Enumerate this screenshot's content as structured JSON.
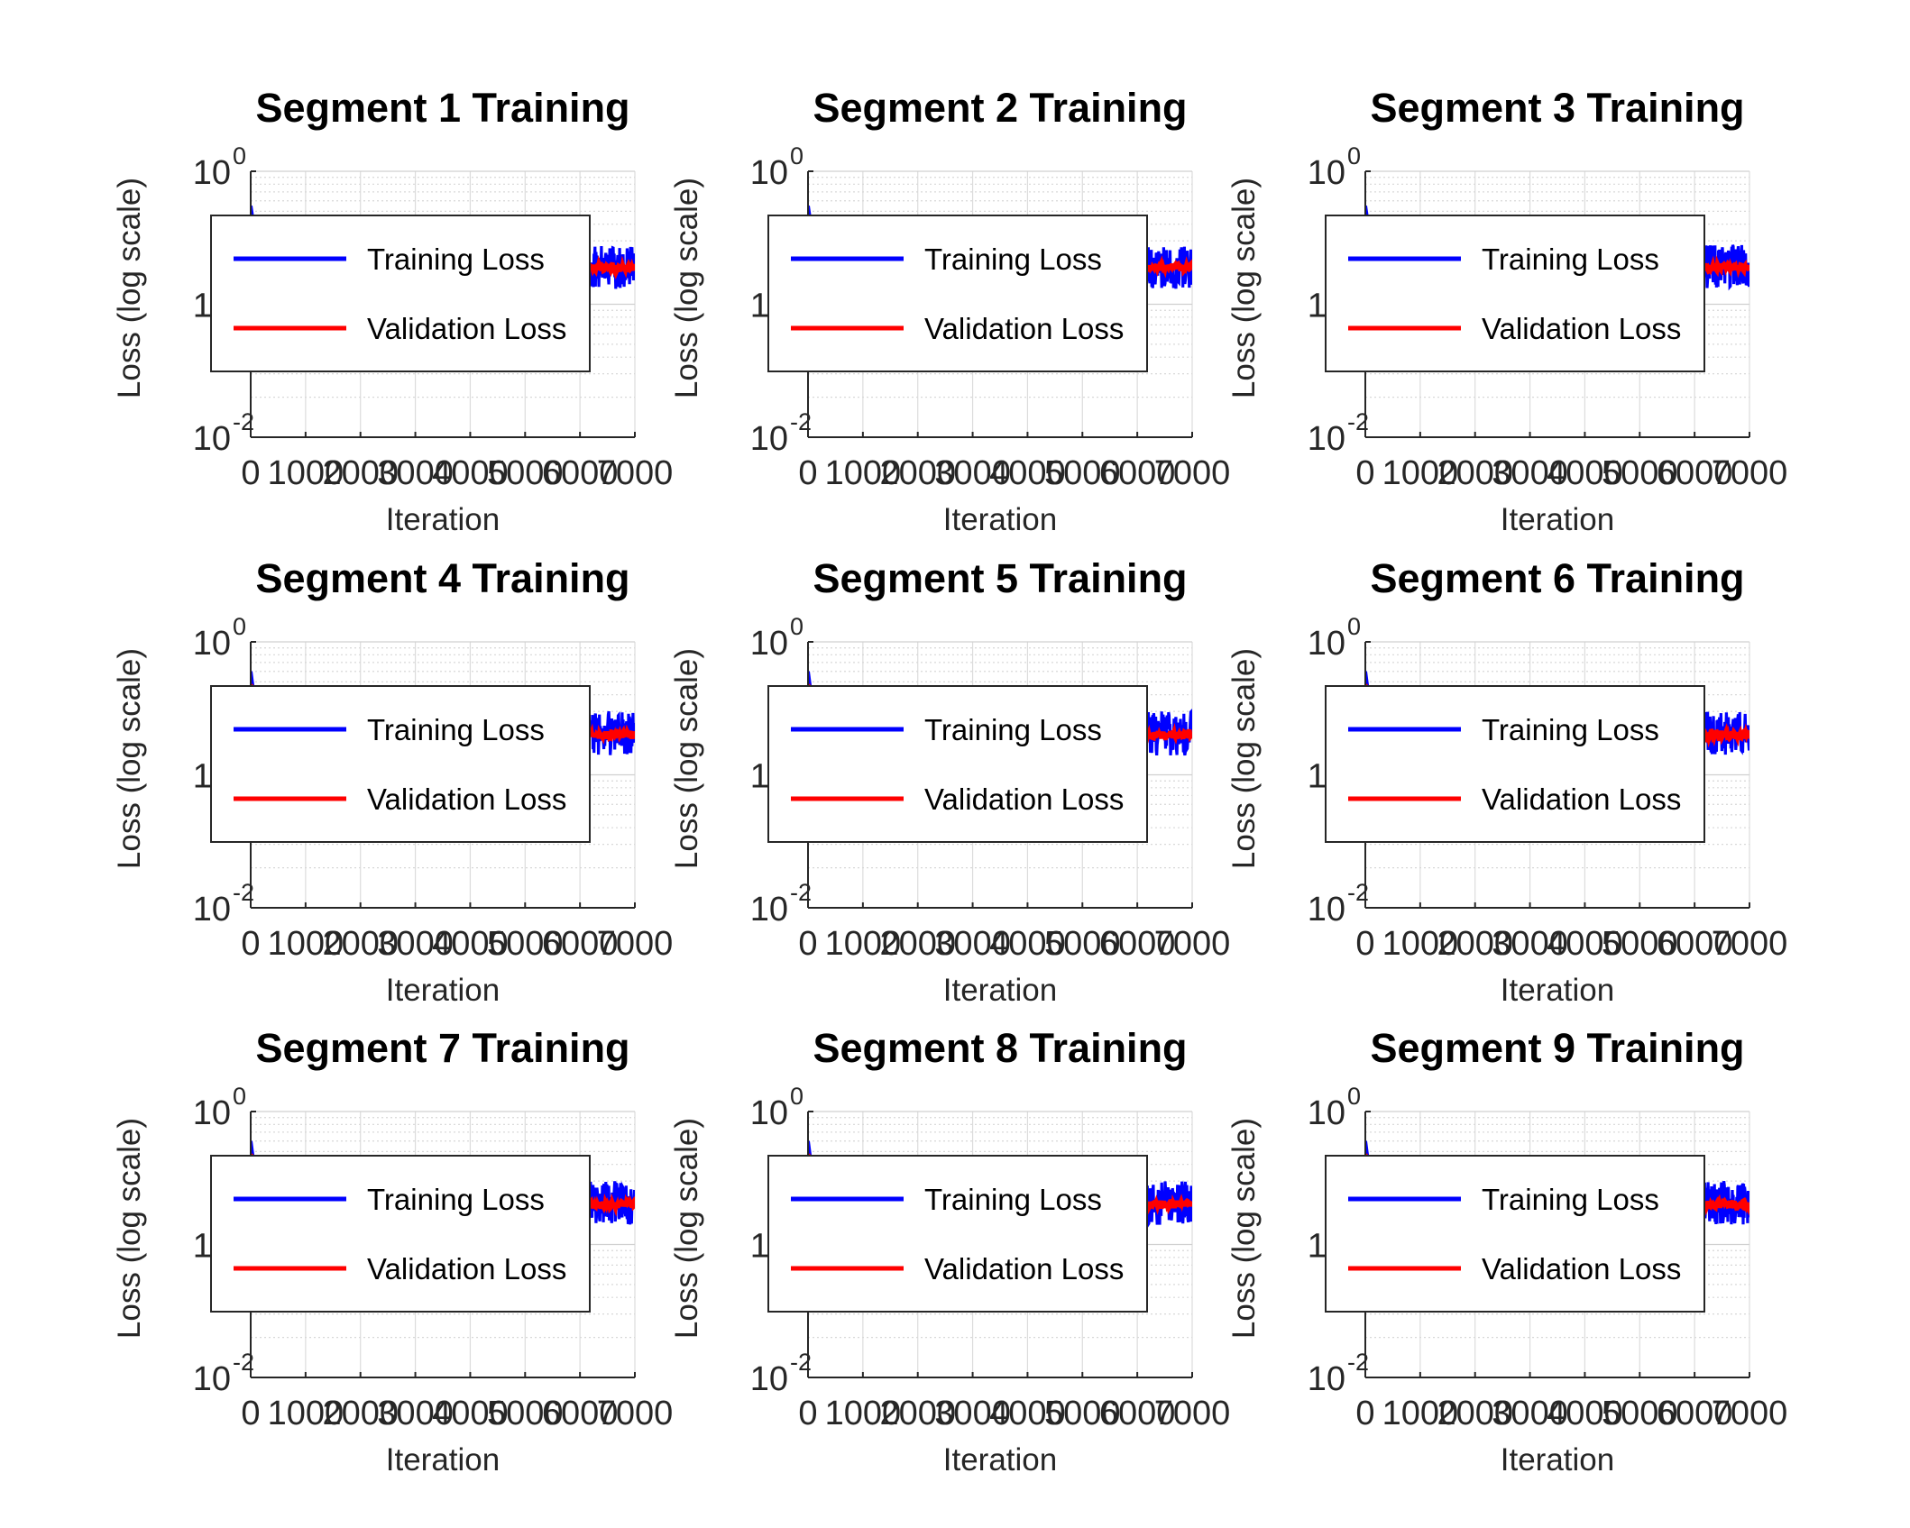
{
  "chart_data": [
    {
      "type": "line",
      "title": "Segment 1 Training",
      "xlabel": "Iteration",
      "ylabel": "Loss (log scale)",
      "xlim": [
        0,
        7000
      ],
      "ylim": [
        0.01,
        1
      ],
      "yscale": "log",
      "grid": true,
      "legend_position": "north",
      "x_ticks": [
        "0",
        "1000",
        "2000",
        "3000",
        "4000",
        "5000",
        "6000",
        "7000"
      ],
      "y_ticks": [
        {
          "base": "10",
          "exp": "-2"
        },
        {
          "base": "10",
          "exp": "-1"
        },
        {
          "base": "10",
          "exp": "0"
        }
      ],
      "series": [
        {
          "name": "Training Loss",
          "color": "#0000ff",
          "x": [
            0,
            50,
            150,
            300,
            1000,
            2000,
            3000,
            4000,
            5000,
            6000,
            6500,
            6800,
            7000
          ],
          "y": [
            0.55,
            0.4,
            0.24,
            0.2,
            0.19,
            0.19,
            0.19,
            0.19,
            0.19,
            0.19,
            0.19,
            0.19,
            0.19
          ],
          "band": [
            0.13,
            0.28
          ]
        },
        {
          "name": "Validation Loss",
          "color": "#ff0000",
          "x": [
            0,
            50,
            150,
            300,
            1000,
            2000,
            3000,
            4000,
            5000,
            6000,
            6500,
            6800,
            7000
          ],
          "y": [
            0.45,
            0.32,
            0.22,
            0.2,
            0.19,
            0.19,
            0.19,
            0.19,
            0.19,
            0.19,
            0.19,
            0.19,
            0.19
          ]
        }
      ]
    },
    {
      "type": "line",
      "title": "Segment 2 Training",
      "xlabel": "Iteration",
      "ylabel": "Loss (log scale)",
      "xlim": [
        0,
        7000
      ],
      "ylim": [
        0.01,
        1
      ],
      "yscale": "log",
      "grid": true,
      "legend_position": "north",
      "x_ticks": [
        "0",
        "1000",
        "2000",
        "3000",
        "4000",
        "5000",
        "6000",
        "7000"
      ],
      "y_ticks": [
        {
          "base": "10",
          "exp": "-2"
        },
        {
          "base": "10",
          "exp": "-1"
        },
        {
          "base": "10",
          "exp": "0"
        }
      ],
      "series": [
        {
          "name": "Training Loss",
          "color": "#0000ff",
          "x": [
            0,
            50,
            150,
            300,
            1000,
            2000,
            3000,
            4000,
            5000,
            6000,
            6500,
            6800,
            7000
          ],
          "y": [
            0.55,
            0.4,
            0.24,
            0.2,
            0.19,
            0.19,
            0.19,
            0.19,
            0.19,
            0.19,
            0.19,
            0.19,
            0.19
          ],
          "band": [
            0.13,
            0.28
          ]
        },
        {
          "name": "Validation Loss",
          "color": "#ff0000",
          "x": [
            0,
            50,
            150,
            300,
            1000,
            2000,
            3000,
            4000,
            5000,
            6000,
            6500,
            6800,
            7000
          ],
          "y": [
            0.45,
            0.32,
            0.22,
            0.2,
            0.19,
            0.19,
            0.19,
            0.19,
            0.19,
            0.19,
            0.19,
            0.19,
            0.19
          ]
        }
      ]
    },
    {
      "type": "line",
      "title": "Segment 3 Training",
      "xlabel": "Iteration",
      "ylabel": "Loss (log scale)",
      "xlim": [
        0,
        7000
      ],
      "ylim": [
        0.01,
        1
      ],
      "yscale": "log",
      "grid": true,
      "legend_position": "north",
      "x_ticks": [
        "0",
        "1000",
        "2000",
        "3000",
        "4000",
        "5000",
        "6000",
        "7000"
      ],
      "y_ticks": [
        {
          "base": "10",
          "exp": "-2"
        },
        {
          "base": "10",
          "exp": "-1"
        },
        {
          "base": "10",
          "exp": "0"
        }
      ],
      "series": [
        {
          "name": "Training Loss",
          "color": "#0000ff",
          "x": [
            0,
            50,
            150,
            300,
            1000,
            2000,
            3000,
            4000,
            5000,
            6000,
            6500,
            6800,
            7000
          ],
          "y": [
            0.55,
            0.4,
            0.24,
            0.2,
            0.19,
            0.19,
            0.19,
            0.19,
            0.19,
            0.19,
            0.19,
            0.19,
            0.19
          ],
          "band": [
            0.13,
            0.28
          ]
        },
        {
          "name": "Validation Loss",
          "color": "#ff0000",
          "x": [
            0,
            50,
            150,
            300,
            1000,
            2000,
            3000,
            4000,
            5000,
            6000,
            6500,
            6800,
            7000
          ],
          "y": [
            0.45,
            0.32,
            0.22,
            0.2,
            0.19,
            0.19,
            0.19,
            0.19,
            0.19,
            0.19,
            0.19,
            0.19,
            0.19
          ]
        }
      ]
    },
    {
      "type": "line",
      "title": "Segment 4 Training",
      "xlabel": "Iteration",
      "ylabel": "Loss (log scale)",
      "xlim": [
        0,
        7000
      ],
      "ylim": [
        0.01,
        1
      ],
      "yscale": "log",
      "grid": true,
      "legend_position": "north",
      "x_ticks": [
        "0",
        "1000",
        "2000",
        "3000",
        "4000",
        "5000",
        "6000",
        "7000"
      ],
      "y_ticks": [
        {
          "base": "10",
          "exp": "-2"
        },
        {
          "base": "10",
          "exp": "-1"
        },
        {
          "base": "10",
          "exp": "0"
        }
      ],
      "series": [
        {
          "name": "Training Loss",
          "color": "#0000ff",
          "x": [
            0,
            50,
            150,
            300,
            1000,
            2000,
            3000,
            4000,
            5000,
            6000,
            6500,
            6800,
            7000
          ],
          "y": [
            0.6,
            0.42,
            0.26,
            0.21,
            0.2,
            0.2,
            0.2,
            0.2,
            0.2,
            0.2,
            0.2,
            0.2,
            0.2
          ],
          "band": [
            0.14,
            0.3
          ]
        },
        {
          "name": "Validation Loss",
          "color": "#ff0000",
          "x": [
            0,
            50,
            150,
            300,
            1000,
            2000,
            3000,
            4000,
            5000,
            6000,
            6500,
            6800,
            7000
          ],
          "y": [
            0.48,
            0.34,
            0.23,
            0.21,
            0.2,
            0.2,
            0.2,
            0.2,
            0.2,
            0.2,
            0.2,
            0.2,
            0.2
          ]
        }
      ]
    },
    {
      "type": "line",
      "title": "Segment 5 Training",
      "xlabel": "Iteration",
      "ylabel": "Loss (log scale)",
      "xlim": [
        0,
        7000
      ],
      "ylim": [
        0.01,
        1
      ],
      "yscale": "log",
      "grid": true,
      "legend_position": "north",
      "x_ticks": [
        "0",
        "1000",
        "2000",
        "3000",
        "4000",
        "5000",
        "6000",
        "7000"
      ],
      "y_ticks": [
        {
          "base": "10",
          "exp": "-2"
        },
        {
          "base": "10",
          "exp": "-1"
        },
        {
          "base": "10",
          "exp": "0"
        }
      ],
      "series": [
        {
          "name": "Training Loss",
          "color": "#0000ff",
          "x": [
            0,
            50,
            150,
            300,
            1000,
            2000,
            3000,
            4000,
            5000,
            6000,
            6500,
            6800,
            7000
          ],
          "y": [
            0.6,
            0.42,
            0.26,
            0.21,
            0.2,
            0.2,
            0.2,
            0.2,
            0.2,
            0.2,
            0.2,
            0.2,
            0.2
          ],
          "band": [
            0.14,
            0.3
          ]
        },
        {
          "name": "Validation Loss",
          "color": "#ff0000",
          "x": [
            0,
            50,
            150,
            300,
            1000,
            2000,
            3000,
            4000,
            5000,
            6000,
            6500,
            6800,
            7000
          ],
          "y": [
            0.48,
            0.34,
            0.23,
            0.21,
            0.2,
            0.2,
            0.2,
            0.2,
            0.2,
            0.2,
            0.2,
            0.2,
            0.2
          ]
        }
      ]
    },
    {
      "type": "line",
      "title": "Segment 6 Training",
      "xlabel": "Iteration",
      "ylabel": "Loss (log scale)",
      "xlim": [
        0,
        7000
      ],
      "ylim": [
        0.01,
        1
      ],
      "yscale": "log",
      "grid": true,
      "legend_position": "north",
      "x_ticks": [
        "0",
        "1000",
        "2000",
        "3000",
        "4000",
        "5000",
        "6000",
        "7000"
      ],
      "y_ticks": [
        {
          "base": "10",
          "exp": "-2"
        },
        {
          "base": "10",
          "exp": "-1"
        },
        {
          "base": "10",
          "exp": "0"
        }
      ],
      "series": [
        {
          "name": "Training Loss",
          "color": "#0000ff",
          "x": [
            0,
            50,
            150,
            300,
            1000,
            2000,
            3000,
            4000,
            5000,
            6000,
            6500,
            6800,
            7000
          ],
          "y": [
            0.6,
            0.42,
            0.26,
            0.21,
            0.2,
            0.2,
            0.2,
            0.2,
            0.2,
            0.2,
            0.2,
            0.2,
            0.2
          ],
          "band": [
            0.14,
            0.3
          ]
        },
        {
          "name": "Validation Loss",
          "color": "#ff0000",
          "x": [
            0,
            50,
            150,
            300,
            1000,
            2000,
            3000,
            4000,
            5000,
            6000,
            6500,
            6800,
            7000
          ],
          "y": [
            0.48,
            0.34,
            0.23,
            0.21,
            0.2,
            0.2,
            0.2,
            0.2,
            0.2,
            0.2,
            0.2,
            0.2,
            0.2
          ]
        }
      ]
    },
    {
      "type": "line",
      "title": "Segment 7 Training",
      "xlabel": "Iteration",
      "ylabel": "Loss (log scale)",
      "xlim": [
        0,
        7000
      ],
      "ylim": [
        0.01,
        1
      ],
      "yscale": "log",
      "grid": true,
      "legend_position": "north",
      "x_ticks": [
        "0",
        "1000",
        "2000",
        "3000",
        "4000",
        "5000",
        "6000",
        "7000"
      ],
      "y_ticks": [
        {
          "base": "10",
          "exp": "-2"
        },
        {
          "base": "10",
          "exp": "-1"
        },
        {
          "base": "10",
          "exp": "0"
        }
      ],
      "series": [
        {
          "name": "Training Loss",
          "color": "#0000ff",
          "x": [
            0,
            50,
            150,
            300,
            1000,
            2000,
            3000,
            4000,
            5000,
            6000,
            6500,
            6800,
            7000
          ],
          "y": [
            0.6,
            0.42,
            0.26,
            0.21,
            0.2,
            0.2,
            0.2,
            0.2,
            0.2,
            0.2,
            0.2,
            0.2,
            0.2
          ],
          "band": [
            0.14,
            0.3
          ]
        },
        {
          "name": "Validation Loss",
          "color": "#ff0000",
          "x": [
            0,
            50,
            150,
            300,
            1000,
            2000,
            3000,
            4000,
            5000,
            6000,
            6500,
            6800,
            7000
          ],
          "y": [
            0.48,
            0.34,
            0.23,
            0.21,
            0.2,
            0.2,
            0.2,
            0.2,
            0.2,
            0.2,
            0.2,
            0.2,
            0.2
          ]
        }
      ]
    },
    {
      "type": "line",
      "title": "Segment 8 Training",
      "xlabel": "Iteration",
      "ylabel": "Loss (log scale)",
      "xlim": [
        0,
        7000
      ],
      "ylim": [
        0.01,
        1
      ],
      "yscale": "log",
      "grid": true,
      "legend_position": "north",
      "x_ticks": [
        "0",
        "1000",
        "2000",
        "3000",
        "4000",
        "5000",
        "6000",
        "7000"
      ],
      "y_ticks": [
        {
          "base": "10",
          "exp": "-2"
        },
        {
          "base": "10",
          "exp": "-1"
        },
        {
          "base": "10",
          "exp": "0"
        }
      ],
      "series": [
        {
          "name": "Training Loss",
          "color": "#0000ff",
          "x": [
            0,
            50,
            150,
            300,
            1000,
            2000,
            3000,
            4000,
            5000,
            6000,
            6500,
            6800,
            7000
          ],
          "y": [
            0.6,
            0.42,
            0.26,
            0.21,
            0.2,
            0.2,
            0.2,
            0.2,
            0.2,
            0.2,
            0.2,
            0.2,
            0.2
          ],
          "band": [
            0.14,
            0.3
          ]
        },
        {
          "name": "Validation Loss",
          "color": "#ff0000",
          "x": [
            0,
            50,
            150,
            300,
            1000,
            2000,
            3000,
            4000,
            5000,
            6000,
            6500,
            6800,
            7000
          ],
          "y": [
            0.48,
            0.34,
            0.23,
            0.21,
            0.2,
            0.2,
            0.2,
            0.2,
            0.2,
            0.2,
            0.2,
            0.2,
            0.2
          ]
        }
      ]
    },
    {
      "type": "line",
      "title": "Segment 9 Training",
      "xlabel": "Iteration",
      "ylabel": "Loss (log scale)",
      "xlim": [
        0,
        7000
      ],
      "ylim": [
        0.01,
        1
      ],
      "yscale": "log",
      "grid": true,
      "legend_position": "north",
      "x_ticks": [
        "0",
        "1000",
        "2000",
        "3000",
        "4000",
        "5000",
        "6000",
        "7000"
      ],
      "y_ticks": [
        {
          "base": "10",
          "exp": "-2"
        },
        {
          "base": "10",
          "exp": "-1"
        },
        {
          "base": "10",
          "exp": "0"
        }
      ],
      "series": [
        {
          "name": "Training Loss",
          "color": "#0000ff",
          "x": [
            0,
            50,
            150,
            300,
            1000,
            2000,
            3000,
            4000,
            5000,
            6000,
            6500,
            6800,
            7000
          ],
          "y": [
            0.6,
            0.42,
            0.26,
            0.21,
            0.2,
            0.2,
            0.2,
            0.2,
            0.2,
            0.2,
            0.2,
            0.2,
            0.2
          ],
          "band": [
            0.14,
            0.3
          ]
        },
        {
          "name": "Validation Loss",
          "color": "#ff0000",
          "x": [
            0,
            50,
            150,
            300,
            1000,
            2000,
            3000,
            4000,
            5000,
            6000,
            6500,
            6800,
            7000
          ],
          "y": [
            0.48,
            0.34,
            0.23,
            0.21,
            0.2,
            0.2,
            0.2,
            0.2,
            0.2,
            0.2,
            0.2,
            0.2,
            0.2
          ]
        }
      ]
    }
  ]
}
